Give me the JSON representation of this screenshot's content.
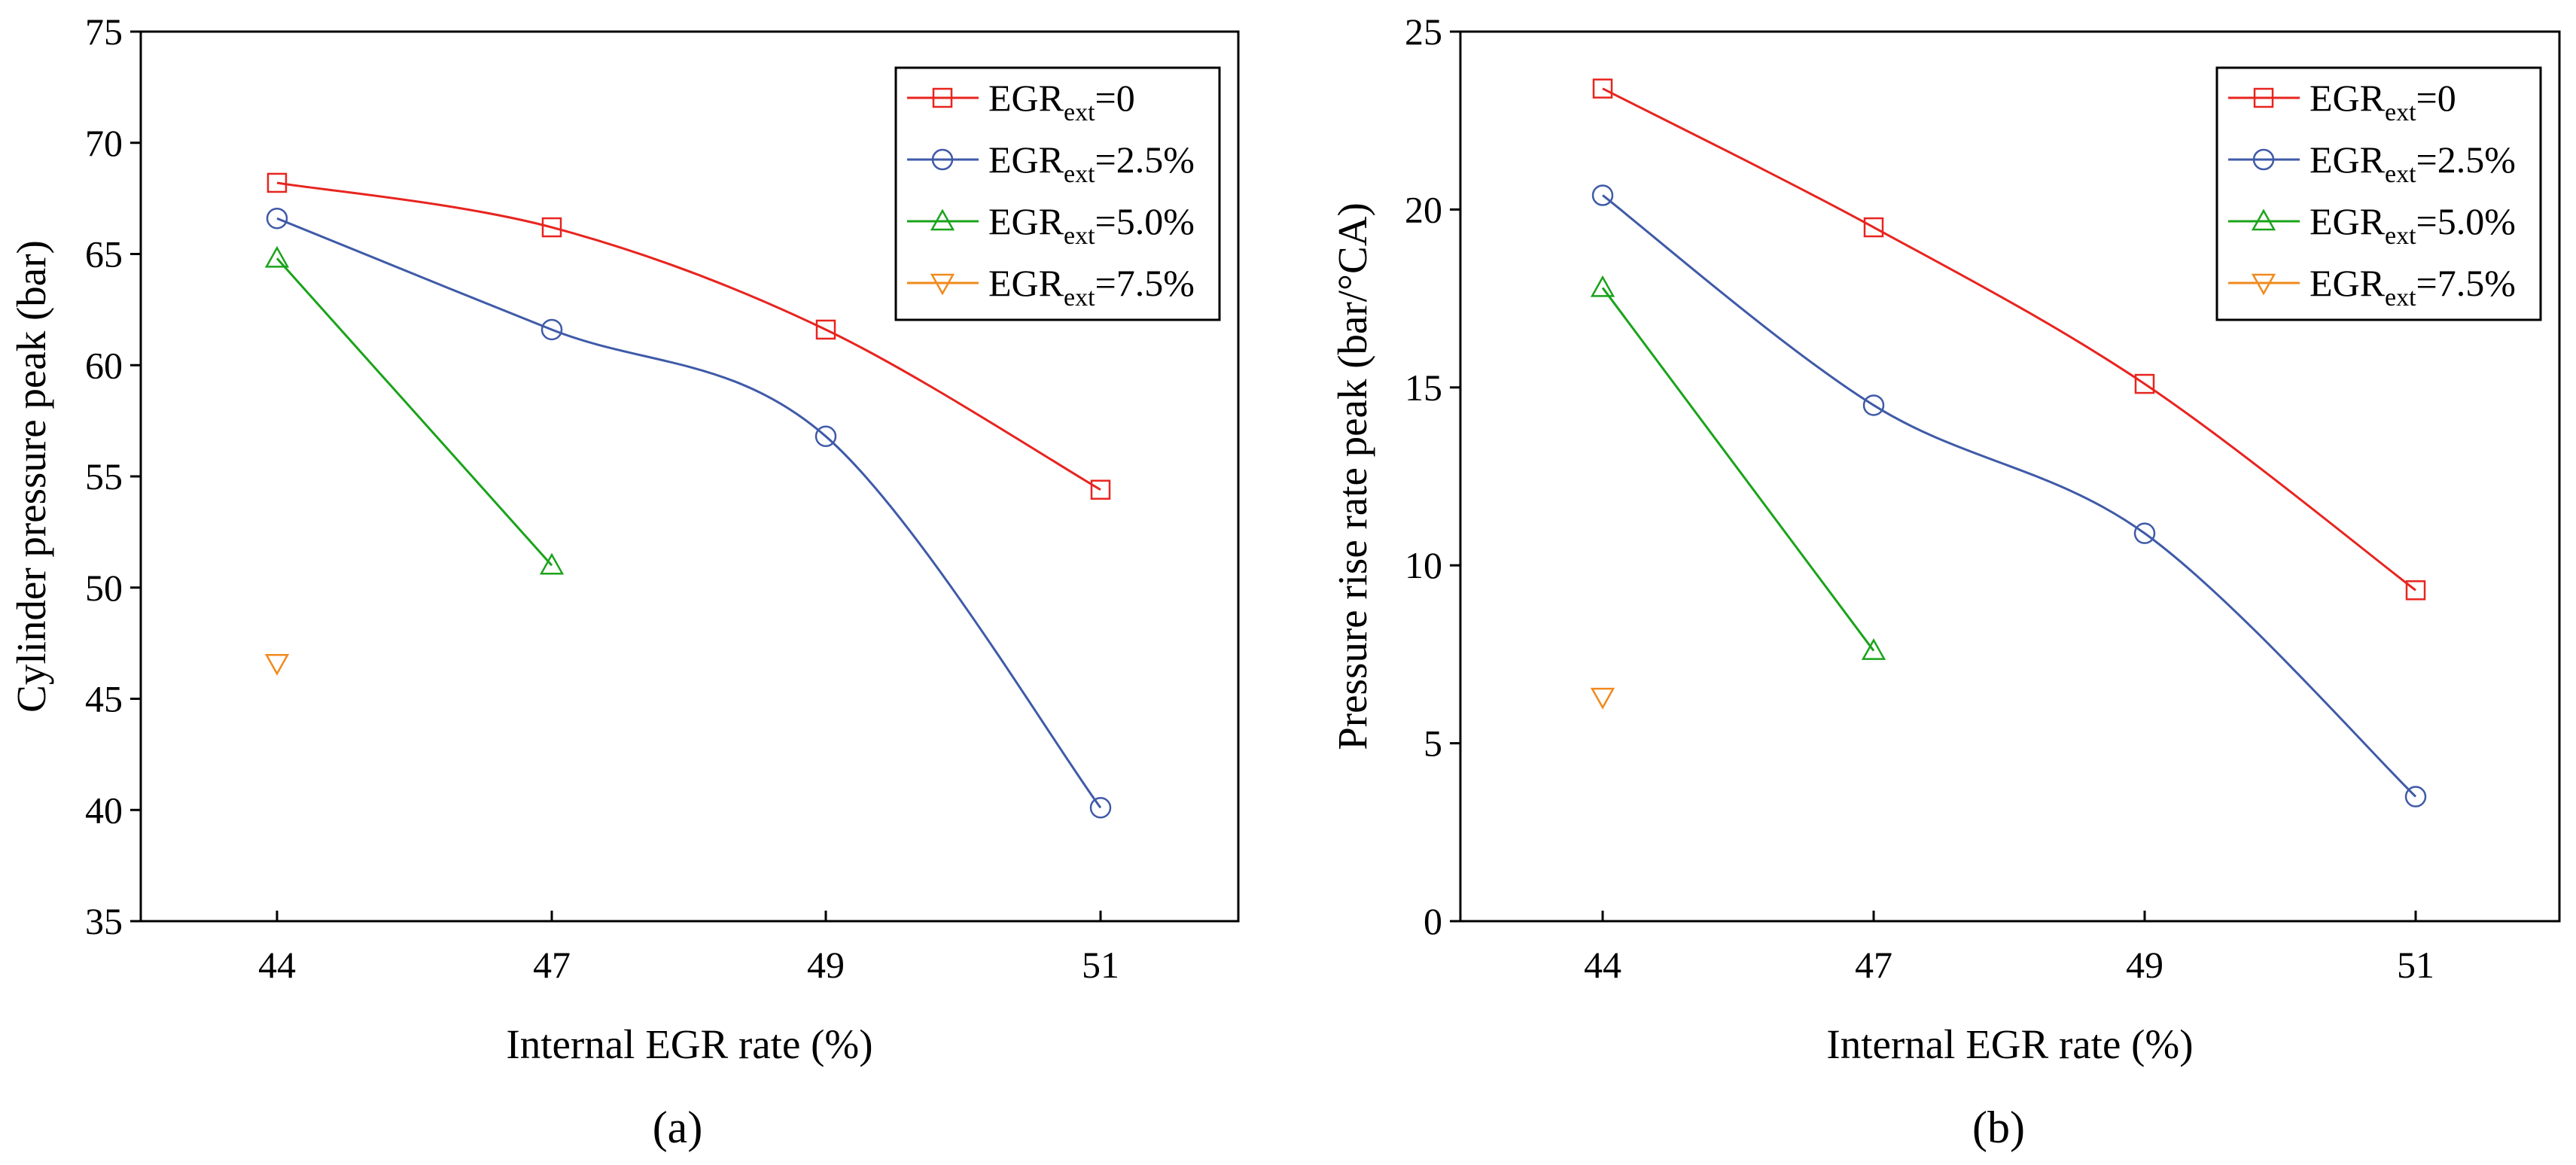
{
  "colors": {
    "ext0": "#e8241f",
    "ext25": "#3f5aa8",
    "ext50": "#1aa31a",
    "ext75": "#f08a1d",
    "axis": "#000000"
  },
  "legend_position": "top-right",
  "chart_data": [
    {
      "type": "line",
      "panel_label": "(a)",
      "xlabel": "Internal EGR rate (%)",
      "ylabel": "Cylinder pressure peak (bar)",
      "categories": [
        "44",
        "47",
        "49",
        "51"
      ],
      "ylim": [
        35,
        75
      ],
      "yticks": [
        "35",
        "40",
        "45",
        "50",
        "55",
        "60",
        "65",
        "70",
        "75"
      ],
      "series": [
        {
          "name_main": "EGR",
          "name_sub": "ext",
          "name_tail": "=0",
          "color": "#e8241f",
          "marker": "square",
          "x": [
            0,
            1,
            2,
            3
          ],
          "values": [
            68.2,
            66.2,
            61.6,
            54.4
          ]
        },
        {
          "name_main": "EGR",
          "name_sub": "ext",
          "name_tail": "=2.5%",
          "color": "#3f5aa8",
          "marker": "circle",
          "x": [
            0,
            1,
            2,
            3
          ],
          "values": [
            66.6,
            61.6,
            56.8,
            40.1
          ]
        },
        {
          "name_main": "EGR",
          "name_sub": "ext",
          "name_tail": "=5.0%",
          "color": "#1aa31a",
          "marker": "triangle-up",
          "x": [
            0,
            1
          ],
          "values": [
            64.8,
            51.0
          ]
        },
        {
          "name_main": "EGR",
          "name_sub": "ext",
          "name_tail": "=7.5%",
          "color": "#f08a1d",
          "marker": "triangle-down",
          "x": [
            0
          ],
          "values": [
            46.6
          ]
        }
      ]
    },
    {
      "type": "line",
      "panel_label": "(b)",
      "xlabel": "Internal EGR rate (%)",
      "ylabel": "Pressure rise rate peak (bar/°CA)",
      "categories": [
        "44",
        "47",
        "49",
        "51"
      ],
      "ylim": [
        0,
        25
      ],
      "yticks": [
        "0",
        "5",
        "10",
        "15",
        "20",
        "25"
      ],
      "series": [
        {
          "name_main": "EGR",
          "name_sub": "ext",
          "name_tail": "=0",
          "color": "#e8241f",
          "marker": "square",
          "x": [
            0,
            1,
            2,
            3
          ],
          "values": [
            23.4,
            19.5,
            15.1,
            9.3
          ]
        },
        {
          "name_main": "EGR",
          "name_sub": "ext",
          "name_tail": "=2.5%",
          "color": "#3f5aa8",
          "marker": "circle",
          "x": [
            0,
            1,
            2,
            3
          ],
          "values": [
            20.4,
            14.5,
            10.9,
            3.5
          ]
        },
        {
          "name_main": "EGR",
          "name_sub": "ext",
          "name_tail": "=5.0%",
          "color": "#1aa31a",
          "marker": "triangle-up",
          "x": [
            0,
            1
          ],
          "values": [
            17.8,
            7.6
          ]
        },
        {
          "name_main": "EGR",
          "name_sub": "ext",
          "name_tail": "=7.5%",
          "color": "#f08a1d",
          "marker": "triangle-down",
          "x": [
            0
          ],
          "values": [
            6.3
          ]
        }
      ]
    }
  ]
}
